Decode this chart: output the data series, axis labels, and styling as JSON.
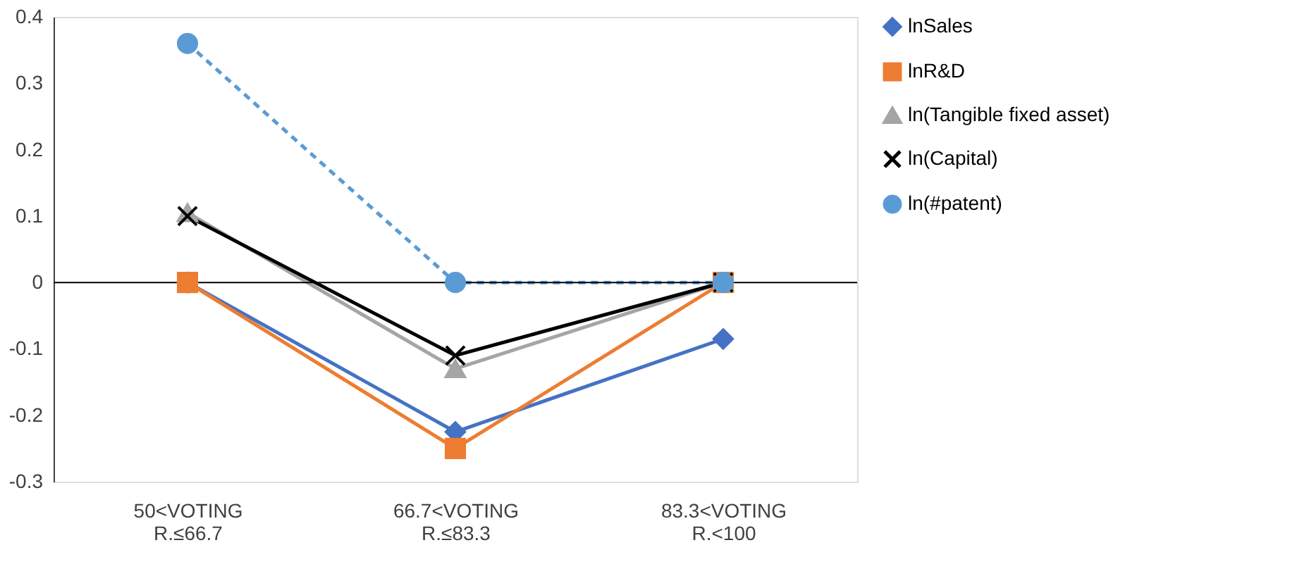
{
  "chart_data": {
    "type": "line",
    "categories": [
      "50<VOTING R.≤66.7",
      "66.7<VOTING R.≤83.3",
      "83.3<VOTING R.<100"
    ],
    "series": [
      {
        "name": "lnSales",
        "color": "#4472c4",
        "marker": "diamond",
        "line_style": "solid",
        "values": [
          0,
          -0.225,
          -0.085
        ]
      },
      {
        "name": "lnR&D",
        "color": "#ed7d31",
        "marker": "square",
        "line_style": "solid",
        "values": [
          0,
          -0.25,
          0
        ]
      },
      {
        "name": "ln(Tangible fixed asset)",
        "color": "#a5a5a5",
        "marker": "triangle",
        "line_style": "solid",
        "values": [
          0.105,
          -0.13,
          0
        ]
      },
      {
        "name": "ln(Capital)",
        "color": "#000000",
        "marker": "cross",
        "line_style": "solid",
        "values": [
          0.1,
          -0.11,
          0
        ]
      },
      {
        "name": "ln(#patent)",
        "color": "#5b9bd5",
        "marker": "circle",
        "line_style": "dashed",
        "values": [
          0.36,
          0,
          0
        ]
      }
    ],
    "ylim": [
      -0.3,
      0.4
    ],
    "yticks": [
      -0.3,
      -0.2,
      -0.1,
      0,
      0.1,
      0.2,
      0.3,
      0.4
    ],
    "ref_lines": [
      {
        "axis": "y",
        "value": 0,
        "color": "#000000"
      }
    ],
    "grid": false,
    "legend": "right"
  }
}
